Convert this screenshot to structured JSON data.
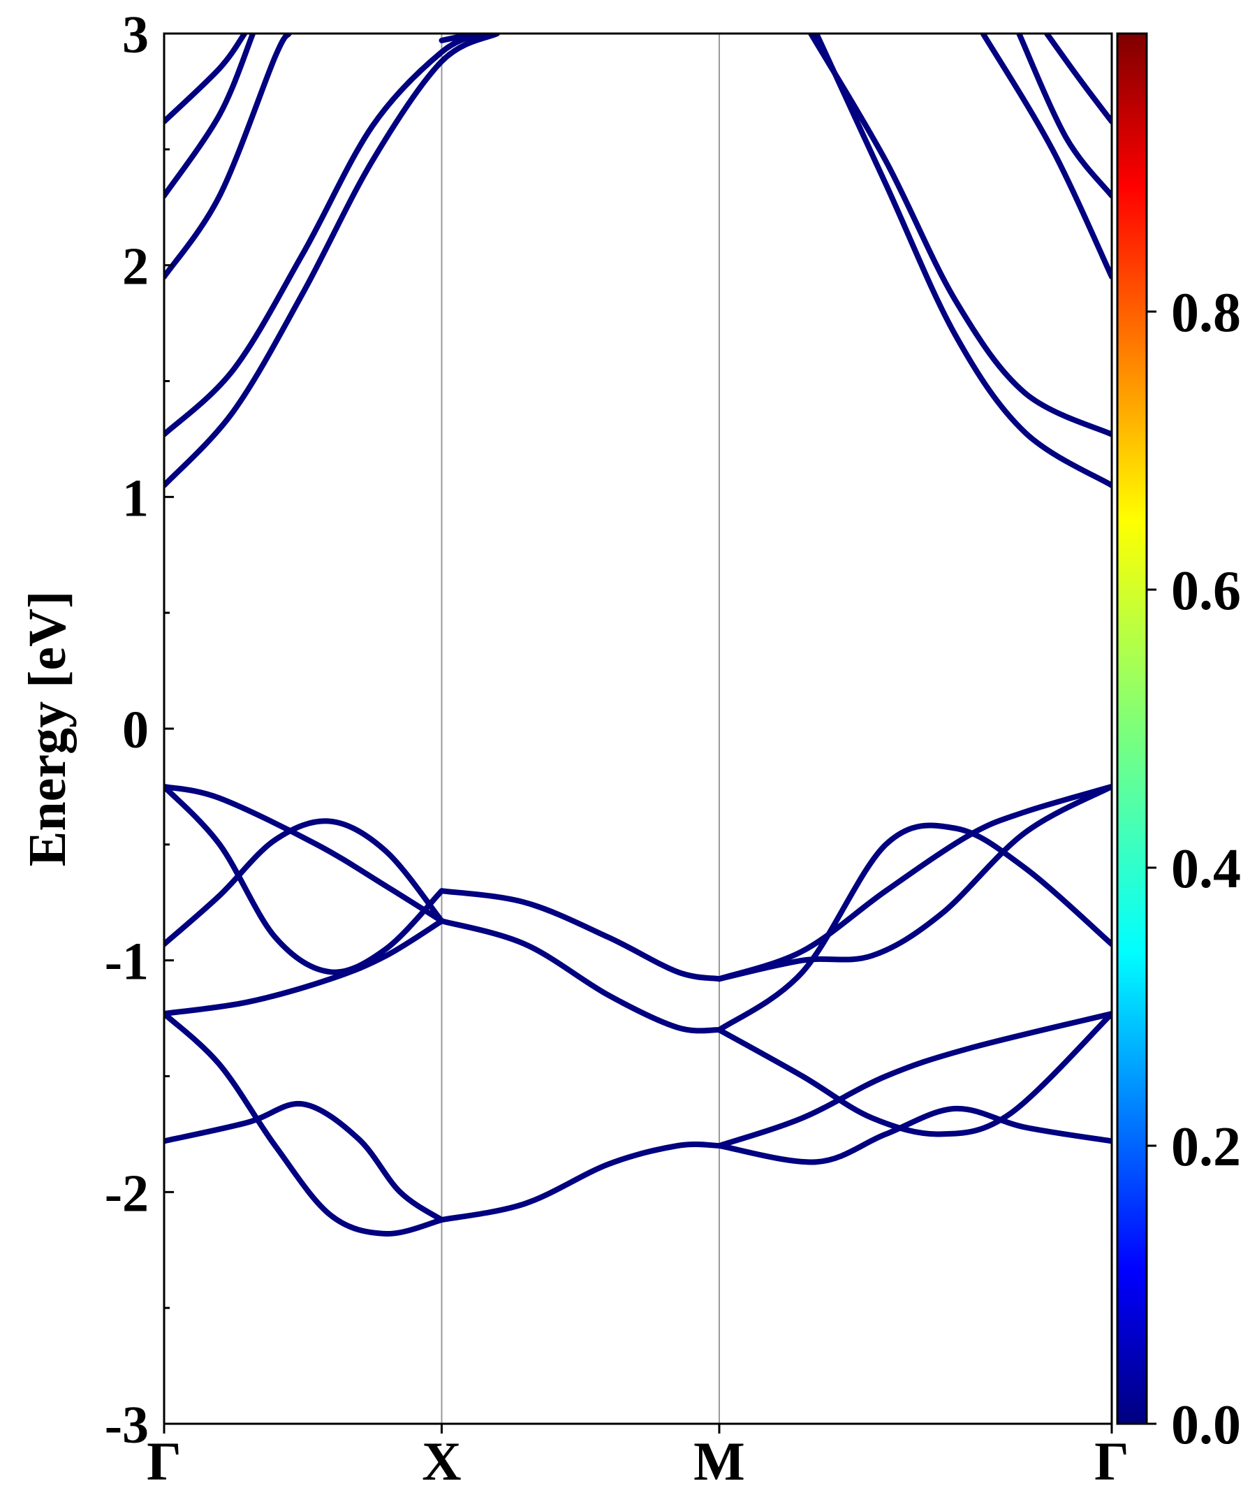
{
  "chart_data": {
    "type": "line",
    "ylabel": "Energy [eV]",
    "xlabel": "",
    "ylim": [
      -3,
      3
    ],
    "xlim": [
      0,
      3.414
    ],
    "x_ticks": [
      {
        "label": "Γ",
        "value": 0
      },
      {
        "label": "X",
        "value": 1
      },
      {
        "label": "M",
        "value": 2
      },
      {
        "label": "Γ",
        "value": 3.414
      }
    ],
    "y_ticks": [
      -3,
      -2,
      -1,
      0,
      1,
      2,
      3
    ],
    "y_minor_step": 0.5,
    "line_color": "#000080",
    "grid": false,
    "kpath_divider_color": "#999999",
    "series": [
      {
        "points": [
          [
            0,
            1.05
          ],
          [
            0.25,
            1.37
          ],
          [
            0.5,
            1.88
          ],
          [
            0.75,
            2.45
          ],
          [
            1.0,
            2.88
          ],
          [
            1.2,
            3.0
          ]
        ]
      },
      {
        "points": [
          [
            0,
            1.27
          ],
          [
            0.25,
            1.55
          ],
          [
            0.5,
            2.05
          ],
          [
            0.75,
            2.6
          ],
          [
            1.0,
            2.92
          ],
          [
            1.15,
            3.0
          ]
        ]
      },
      {
        "points": [
          [
            0,
            1.95
          ],
          [
            0.2,
            2.3
          ],
          [
            0.4,
            2.9
          ],
          [
            0.45,
            3.0
          ]
        ]
      },
      {
        "points": [
          [
            0,
            2.3
          ],
          [
            0.2,
            2.65
          ],
          [
            0.32,
            3.0
          ]
        ]
      },
      {
        "points": [
          [
            0,
            2.62
          ],
          [
            0.2,
            2.85
          ],
          [
            0.29,
            3.0
          ]
        ]
      },
      {
        "points": [
          [
            1.0,
            2.97
          ],
          [
            1.12,
            3.0
          ]
        ]
      },
      {
        "points": [
          [
            2.35,
            3.0
          ],
          [
            2.6,
            2.35
          ],
          [
            2.85,
            1.7
          ],
          [
            3.1,
            1.28
          ],
          [
            3.414,
            1.05
          ]
        ]
      },
      {
        "points": [
          [
            2.33,
            3.0
          ],
          [
            2.6,
            2.45
          ],
          [
            2.85,
            1.85
          ],
          [
            3.1,
            1.45
          ],
          [
            3.414,
            1.27
          ]
        ]
      },
      {
        "points": [
          [
            2.95,
            3.0
          ],
          [
            3.2,
            2.5
          ],
          [
            3.414,
            1.95
          ]
        ]
      },
      {
        "points": [
          [
            3.08,
            3.0
          ],
          [
            3.25,
            2.55
          ],
          [
            3.414,
            2.3
          ]
        ]
      },
      {
        "points": [
          [
            3.18,
            3.0
          ],
          [
            3.3,
            2.8
          ],
          [
            3.414,
            2.62
          ]
        ]
      },
      {
        "points": [
          [
            0,
            -0.25
          ],
          [
            0.2,
            -0.3
          ],
          [
            0.55,
            -0.5
          ],
          [
            0.8,
            -0.68
          ],
          [
            1.0,
            -0.83
          ]
        ]
      },
      {
        "points": [
          [
            0,
            -0.25
          ],
          [
            0.2,
            -0.5
          ],
          [
            0.4,
            -0.9
          ],
          [
            0.6,
            -1.05
          ],
          [
            0.8,
            -0.95
          ],
          [
            1.0,
            -0.7
          ]
        ]
      },
      {
        "points": [
          [
            0,
            -0.93
          ],
          [
            0.2,
            -0.72
          ],
          [
            0.4,
            -0.48
          ],
          [
            0.6,
            -0.4
          ],
          [
            0.8,
            -0.53
          ],
          [
            1.0,
            -0.83
          ]
        ]
      },
      {
        "points": [
          [
            0,
            -1.23
          ],
          [
            0.3,
            -1.18
          ],
          [
            0.6,
            -1.08
          ],
          [
            0.8,
            -0.98
          ],
          [
            1.0,
            -0.83
          ]
        ]
      },
      {
        "points": [
          [
            1.0,
            -0.7
          ],
          [
            1.3,
            -0.75
          ],
          [
            1.6,
            -0.9
          ],
          [
            1.85,
            -1.05
          ],
          [
            2.0,
            -1.08
          ]
        ]
      },
      {
        "points": [
          [
            1.0,
            -0.83
          ],
          [
            1.3,
            -0.93
          ],
          [
            1.6,
            -1.15
          ],
          [
            1.85,
            -1.29
          ],
          [
            2.0,
            -1.3
          ]
        ]
      },
      {
        "points": [
          [
            0,
            -1.23
          ],
          [
            0.2,
            -1.45
          ],
          [
            0.4,
            -1.8
          ],
          [
            0.6,
            -2.1
          ],
          [
            0.8,
            -2.18
          ],
          [
            1.0,
            -2.12
          ]
        ]
      },
      {
        "points": [
          [
            0,
            -1.78
          ],
          [
            0.3,
            -1.7
          ],
          [
            0.5,
            -1.62
          ],
          [
            0.7,
            -1.77
          ],
          [
            0.85,
            -2.0
          ],
          [
            1.0,
            -2.12
          ]
        ]
      },
      {
        "points": [
          [
            1.0,
            -2.12
          ],
          [
            1.3,
            -2.05
          ],
          [
            1.6,
            -1.88
          ],
          [
            1.85,
            -1.8
          ],
          [
            2.0,
            -1.8
          ]
        ]
      },
      {
        "points": [
          [
            2.0,
            -1.08
          ],
          [
            2.3,
            -0.96
          ],
          [
            2.6,
            -0.7
          ],
          [
            2.9,
            -0.46
          ],
          [
            3.1,
            -0.36
          ],
          [
            3.414,
            -0.25
          ]
        ]
      },
      {
        "points": [
          [
            2.0,
            -1.08
          ],
          [
            2.3,
            -1.0
          ],
          [
            2.55,
            -0.98
          ],
          [
            2.8,
            -0.8
          ],
          [
            3.1,
            -0.45
          ],
          [
            3.414,
            -0.25
          ]
        ]
      },
      {
        "points": [
          [
            2.0,
            -1.3
          ],
          [
            2.3,
            -1.05
          ],
          [
            2.6,
            -0.5
          ],
          [
            2.85,
            -0.43
          ],
          [
            3.1,
            -0.6
          ],
          [
            3.414,
            -0.93
          ]
        ]
      },
      {
        "points": [
          [
            2.0,
            -1.3
          ],
          [
            2.3,
            -1.5
          ],
          [
            2.55,
            -1.68
          ],
          [
            2.8,
            -1.75
          ],
          [
            3.05,
            -1.66
          ],
          [
            3.414,
            -1.23
          ]
        ]
      },
      {
        "points": [
          [
            2.0,
            -1.8
          ],
          [
            2.3,
            -1.68
          ],
          [
            2.6,
            -1.5
          ],
          [
            2.9,
            -1.38
          ],
          [
            3.414,
            -1.23
          ]
        ]
      },
      {
        "points": [
          [
            2.0,
            -1.8
          ],
          [
            2.35,
            -1.87
          ],
          [
            2.6,
            -1.75
          ],
          [
            2.85,
            -1.64
          ],
          [
            3.1,
            -1.72
          ],
          [
            3.414,
            -1.78
          ]
        ]
      }
    ]
  },
  "colorbar": {
    "colormap": "jet",
    "range": [
      0.0,
      1.0
    ],
    "tick_labels": [
      "0.0",
      "0.2",
      "0.4",
      "0.6",
      "0.8"
    ],
    "tick_values": [
      0.0,
      0.2,
      0.4,
      0.6,
      0.8
    ]
  }
}
